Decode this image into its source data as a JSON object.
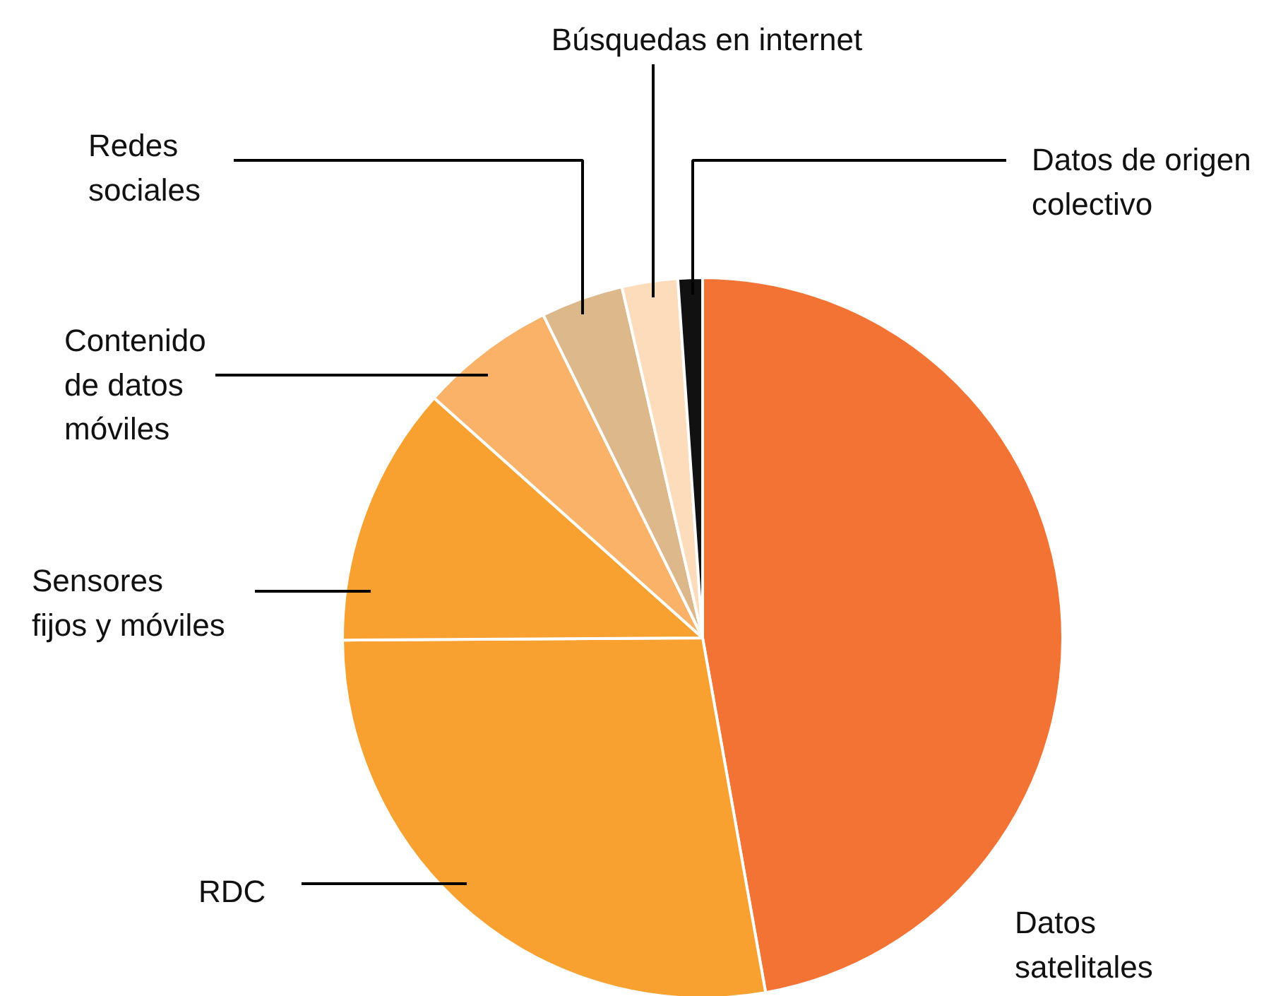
{
  "chart_data": {
    "type": "pie",
    "categories": [
      "Datos satelitales",
      "RDC",
      "Sensores fijos y móviles",
      "Contenido de datos móviles",
      "Redes sociales",
      "Búsquedas en internet",
      "Datos de origen colectivo"
    ],
    "values": [
      47.2,
      27.7,
      11.7,
      6.1,
      3.7,
      2.5,
      1.1
    ],
    "colors": [
      "#f37335",
      "#f8a131",
      "#f8a131",
      "#f9b268",
      "#dcb88a",
      "#fcdcba",
      "#111111"
    ]
  }
}
